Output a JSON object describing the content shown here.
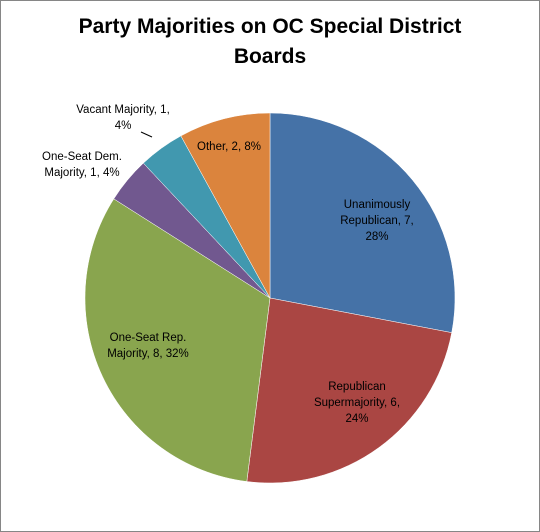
{
  "chart_data": {
    "type": "pie",
    "title": "Party Majorities on OC Special District Boards",
    "values": [
      7,
      6,
      8,
      1,
      1,
      2
    ],
    "value_labels": [
      "Unanimously Republican, 7, 28%",
      "Republican Supermajority, 6, 24%",
      "One-Seat Rep. Majority, 8, 32%",
      "One-Seat Dem. Majority, 1, 4%",
      "Vacant Majority, 1, 4%",
      "Other, 2, 8%"
    ],
    "colors": [
      "#4572a7",
      "#aa4643",
      "#89a54e",
      "#71588f",
      "#4198af",
      "#db843d"
    ]
  }
}
